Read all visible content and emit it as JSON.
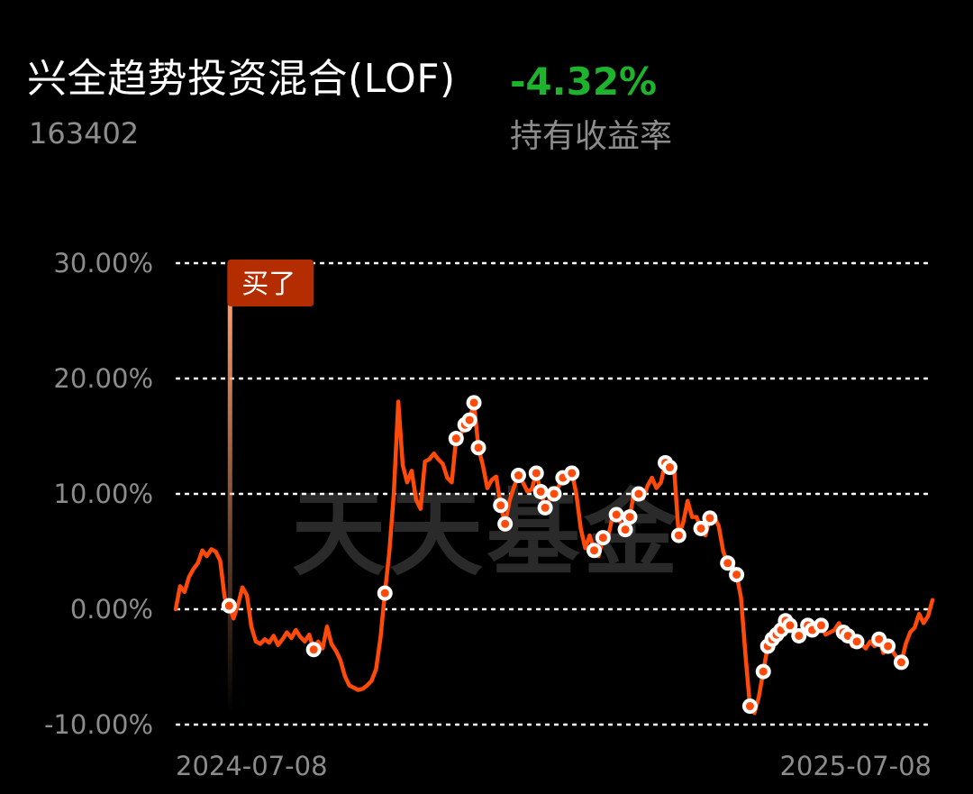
{
  "header": {
    "fund_name": "兴全趋势投资混合(LOF)",
    "fund_code": "163402",
    "return_value": "-4.32%",
    "return_label": "持有收益率"
  },
  "watermark": "天天基金",
  "buy_marker": {
    "label": "买了",
    "date_index": 12
  },
  "colors": {
    "line": "#ff4a0a",
    "positive": "#1db32d",
    "grid": "#ffffff",
    "axis_text": "#8c8c8c",
    "buy_tag": "#b32d00"
  },
  "chart_data": {
    "type": "line",
    "x_start": "2024-07-08",
    "x_end": "2025-07-08",
    "x_tick_labels": [
      "2024-07-08",
      "2025-07-08"
    ],
    "y_tick_labels": [
      "30.00%",
      "20.00%",
      "10.00%",
      "0.00%",
      "-10.00%"
    ],
    "y_ticks": [
      30,
      20,
      10,
      0,
      -10
    ],
    "ylim": [
      -10,
      30
    ],
    "grid": true,
    "series": [
      {
        "values": [
          0.0,
          2.0,
          1.5,
          2.8,
          3.5,
          4.0,
          5.1,
          4.6,
          5.2,
          5.0,
          4.2,
          1.0,
          0.3,
          -0.8,
          0.4,
          1.9,
          1.2,
          -1.5,
          -2.8,
          -3.0,
          -2.6,
          -2.9,
          -2.3,
          -3.1,
          -2.6,
          -2.0,
          -2.5,
          -1.8,
          -2.4,
          -2.8,
          -2.2,
          -3.5,
          -2.8,
          -3.4,
          -1.5,
          -3.0,
          -3.6,
          -4.4,
          -5.8,
          -6.6,
          -6.8,
          -7.0,
          -6.9,
          -6.6,
          -6.2,
          -5.2,
          -2.5,
          1.4,
          5.0,
          10.0,
          18.0,
          12.5,
          11.0,
          12.0,
          9.5,
          8.7,
          12.8,
          13.0,
          13.5,
          13.0,
          12.6,
          11.4,
          11.0,
          14.8,
          15.1,
          16.0,
          16.4,
          17.9,
          14.0,
          12.5,
          10.5,
          11.2,
          11.5,
          9.0,
          7.4,
          9.4,
          10.6,
          11.6,
          11.0,
          10.2,
          10.4,
          11.8,
          10.2,
          8.8,
          9.5,
          10.0,
          10.6,
          11.4,
          11.7,
          11.8,
          10.0,
          7.0,
          5.3,
          6.4,
          5.1,
          4.6,
          6.2,
          6.0,
          7.8,
          8.2,
          7.5,
          6.9,
          8.0,
          10.2,
          10.0,
          9.6,
          10.7,
          11.4,
          10.5,
          11.0,
          12.7,
          12.3,
          12.0,
          6.4,
          7.5,
          9.4,
          8.0,
          8.0,
          7.0,
          6.4,
          7.9,
          8.0,
          7.2,
          5.0,
          4.0,
          3.9,
          3.0,
          1.0,
          -4.0,
          -8.4,
          -9.0,
          -7.6,
          -5.4,
          -3.2,
          -2.6,
          -2.2,
          -1.8,
          -1.0,
          -1.4,
          -2.0,
          -2.3,
          -1.8,
          -1.4,
          -1.8,
          -1.6,
          -1.4,
          -2.2,
          -2.0,
          -1.8,
          -1.2,
          -2.0,
          -2.3,
          -3.2,
          -2.8,
          -3.0,
          -3.4,
          -2.8,
          -3.2,
          -2.6,
          -3.8,
          -3.2,
          -3.6,
          -4.2,
          -4.6,
          -3.0,
          -2.0,
          -1.6,
          -0.4,
          -1.2,
          -0.6,
          0.8
        ],
        "markers": [
          12,
          31,
          47,
          63,
          65,
          66,
          67,
          68,
          73,
          74,
          77,
          81,
          82,
          83,
          85,
          87,
          89,
          94,
          96,
          99,
          101,
          102,
          104,
          110,
          111,
          113,
          118,
          120,
          124,
          126,
          129,
          132,
          133,
          134,
          135,
          136,
          137,
          138,
          140,
          142,
          143,
          145,
          150,
          151,
          153,
          158,
          160,
          163
        ]
      }
    ]
  }
}
